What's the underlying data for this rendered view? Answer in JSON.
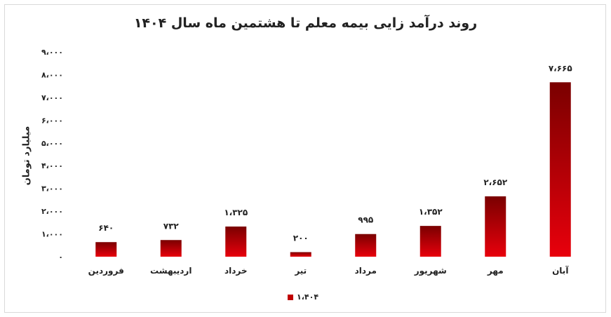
{
  "chart_data": {
    "type": "bar",
    "title": "روند درآمد زایی بیمه معلم تا هشتمین ماه سال ۱۴۰۴",
    "xlabel": "",
    "ylabel": "میلیارد تومان",
    "categories": [
      "فروردین",
      "اردیبهشت",
      "خرداد",
      "تیر",
      "مرداد",
      "شهریور",
      "مهر",
      "آبان"
    ],
    "series": [
      {
        "name": "۱،۴۰۴",
        "values": [
          640,
          732,
          1325,
          200,
          995,
          1352,
          2652,
          7665
        ],
        "data_labels": [
          "۶۴۰",
          "۷۳۲",
          "۱،۳۲۵",
          "۲۰۰",
          "۹۹۵",
          "۱،۳۵۲",
          "۲،۶۵۲",
          "۷،۶۶۵"
        ]
      }
    ],
    "ylim": [
      0,
      9000
    ],
    "yticks": [
      0,
      1000,
      2000,
      3000,
      4000,
      5000,
      6000,
      7000,
      8000,
      9000
    ],
    "ytick_labels": [
      "۰",
      "۱،۰۰۰",
      "۲،۰۰۰",
      "۳،۰۰۰",
      "۴،۰۰۰",
      "۵،۰۰۰",
      "۶،۰۰۰",
      "۷،۰۰۰",
      "۸،۰۰۰",
      "۹،۰۰۰"
    ],
    "grid": false,
    "legend_position": "bottom",
    "colors": {
      "bar_light": "#e8000c",
      "bar_dark": "#7a0000",
      "legend": "#c00000"
    }
  }
}
